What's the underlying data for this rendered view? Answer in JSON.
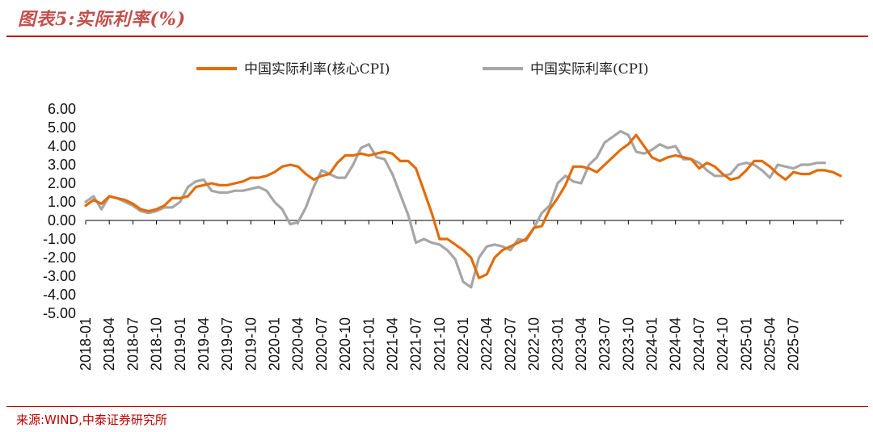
{
  "header": {
    "title": "图表5:实际利率(%)"
  },
  "footer": {
    "source": "来源:WIND,中泰证券研究所"
  },
  "colors": {
    "core": "#e36c09",
    "cpi": "#a6a6a6",
    "accent": "#c00000"
  },
  "chart_data": {
    "type": "line",
    "title": "",
    "xlabel": "",
    "ylabel": "",
    "ylim": [
      -5,
      6
    ],
    "yticks": [
      "6.00",
      "5.00",
      "4.00",
      "3.00",
      "2.00",
      "1.00",
      "0.00",
      "-1.00",
      "-2.00",
      "-3.00",
      "-4.00",
      "-5.00"
    ],
    "xtick_labels": [
      "2018-01",
      "2018-04",
      "2018-07",
      "2018-10",
      "2019-01",
      "2019-04",
      "2019-07",
      "2019-10",
      "2020-01",
      "2020-04",
      "2020-07",
      "2020-10",
      "2021-01",
      "2021-04",
      "2021-07",
      "2021-10",
      "2022-01",
      "2022-04",
      "2022-07",
      "2022-10",
      "2023-01",
      "2023-04",
      "2023-07",
      "2023-10",
      "2024-01",
      "2024-04",
      "2024-07",
      "2024-10",
      "2025-01",
      "2025-04",
      "2025-07"
    ],
    "legend_position": "top",
    "grid": false,
    "series": [
      {
        "name": "中国实际利率(核心CPI)",
        "color": "#e36c09",
        "values": [
          0.8,
          1.1,
          0.9,
          1.3,
          1.2,
          1.1,
          0.9,
          0.6,
          0.5,
          0.6,
          0.8,
          1.2,
          1.2,
          1.3,
          1.8,
          1.9,
          2.0,
          1.9,
          1.9,
          2.0,
          2.1,
          2.3,
          2.3,
          2.4,
          2.6,
          2.9,
          3.0,
          2.9,
          2.5,
          2.2,
          2.4,
          2.5,
          3.1,
          3.5,
          3.5,
          3.6,
          3.5,
          3.6,
          3.7,
          3.6,
          3.2,
          3.2,
          2.8,
          1.6,
          0.4,
          -1.0,
          -1.0,
          -1.3,
          -1.6,
          -2.0,
          -3.1,
          -2.9,
          -2.0,
          -1.6,
          -1.4,
          -1.2,
          -1.0,
          -0.4,
          -0.3,
          0.6,
          1.2,
          1.9,
          2.9,
          2.9,
          2.8,
          2.6,
          3.0,
          3.4,
          3.8,
          4.1,
          4.6,
          4.0,
          3.4,
          3.2,
          3.4,
          3.5,
          3.4,
          3.3,
          2.8,
          3.1,
          2.9,
          2.5,
          2.2,
          2.3,
          2.7,
          3.2,
          3.2,
          2.9,
          2.5,
          2.2,
          2.6,
          2.5,
          2.5,
          2.7,
          2.7,
          2.6,
          2.4
        ]
      },
      {
        "name": "中国实际利率(CPI)",
        "color": "#a6a6a6",
        "values": [
          1.0,
          1.3,
          0.6,
          1.3,
          1.2,
          1.0,
          0.8,
          0.5,
          0.4,
          0.5,
          0.7,
          0.7,
          1.0,
          1.8,
          2.1,
          2.2,
          1.6,
          1.5,
          1.5,
          1.6,
          1.6,
          1.7,
          1.8,
          1.6,
          1.0,
          0.6,
          -0.2,
          -0.1,
          0.7,
          1.8,
          2.7,
          2.5,
          2.3,
          2.3,
          3.0,
          3.9,
          4.1,
          3.4,
          3.3,
          2.5,
          1.4,
          0.3,
          -1.2,
          -1.0,
          -1.2,
          -1.3,
          -1.6,
          -2.1,
          -3.3,
          -3.6,
          -2.0,
          -1.4,
          -1.3,
          -1.4,
          -1.6,
          -1.0,
          -1.1,
          -0.4,
          0.4,
          0.8,
          2.0,
          2.4,
          2.1,
          2.0,
          3.0,
          3.4,
          4.2,
          4.5,
          4.8,
          4.6,
          3.7,
          3.6,
          3.8,
          4.1,
          3.9,
          4.0,
          3.3,
          3.3,
          3.1,
          2.7,
          2.4,
          2.4,
          2.5,
          3.0,
          3.1,
          3.0,
          2.7,
          2.3,
          3.0,
          2.9,
          2.8,
          3.0,
          3.0,
          3.1,
          3.1
        ]
      }
    ]
  }
}
